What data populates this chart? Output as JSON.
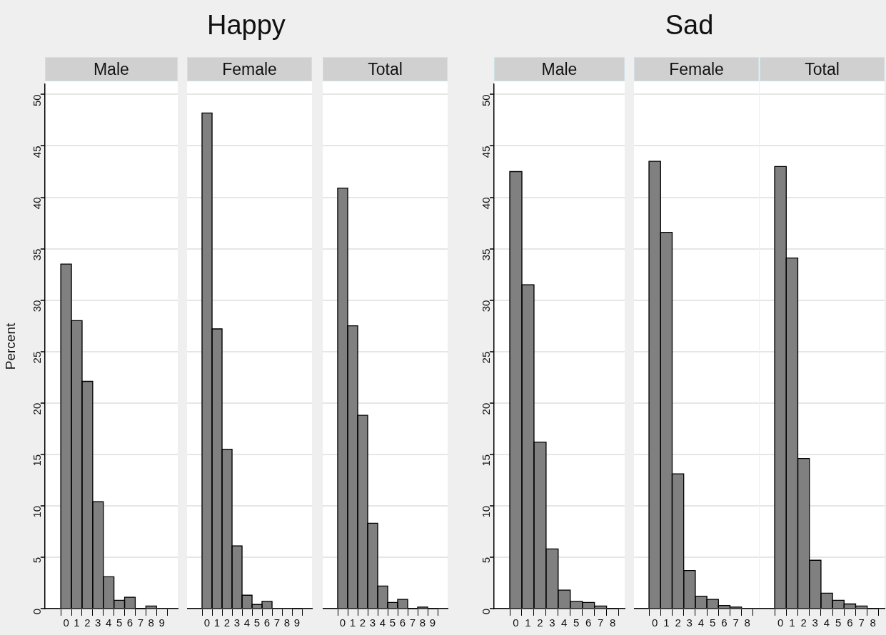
{
  "chart_data": [
    {
      "type": "other",
      "title": "Happy"
    },
    {
      "type": "histogram",
      "subtitle": "Male",
      "ylabel": "Percent",
      "bins": [
        -0.5,
        0.5,
        1.5,
        2.5,
        3.5,
        4.5,
        5.5,
        6.5,
        7.5,
        8.5,
        9.5
      ],
      "values": [
        33.5,
        28.0,
        22.1,
        10.4,
        3.1,
        0.8,
        1.1,
        0,
        0.25,
        null
      ],
      "color": "#808080",
      "xlim": [
        -2,
        10.5
      ],
      "xticks": [
        0,
        1,
        2,
        3,
        4,
        5,
        6,
        7,
        8,
        9
      ],
      "ylim": [
        0,
        51
      ],
      "yticks": [
        0,
        5,
        10,
        15,
        20,
        25,
        30,
        35,
        40,
        45,
        50
      ],
      "grid": "y"
    },
    {
      "type": "histogram",
      "subtitle": "Female",
      "bins": [
        -0.5,
        0.5,
        1.5,
        2.5,
        3.5,
        4.5,
        5.5,
        6.5,
        7.5,
        8.5,
        9.5
      ],
      "values": [
        48.2,
        27.2,
        15.5,
        6.1,
        1.3,
        0.4,
        0.7,
        null,
        null,
        0
      ],
      "color": "#808080",
      "xlim": [
        -2,
        10.5
      ],
      "xticks": [
        0,
        1,
        2,
        3,
        4,
        5,
        6,
        7,
        8,
        9
      ],
      "ylim": [
        0,
        51
      ],
      "yticks": [
        0,
        5,
        10,
        15,
        20,
        25,
        30,
        35,
        40,
        45,
        50
      ],
      "grid": "y",
      "tick_labels": "x"
    },
    {
      "type": "histogram",
      "subtitle": "Total",
      "bins": [
        -0.5,
        0.5,
        1.5,
        2.5,
        3.5,
        4.5,
        5.5,
        6.5,
        7.5,
        8.5,
        9.5
      ],
      "values": [
        40.9,
        27.5,
        18.8,
        8.3,
        2.2,
        0.6,
        0.9,
        0,
        0.15,
        0
      ],
      "color": "#808080",
      "xlim": [
        -2,
        10.5
      ],
      "xticks": [
        0,
        1,
        2,
        3,
        4,
        5,
        6,
        7,
        8,
        9
      ],
      "ylim": [
        0,
        51
      ],
      "yticks": [
        0,
        5,
        10,
        15,
        20,
        25,
        30,
        35,
        40,
        45,
        50
      ],
      "grid": "y",
      "tick_labels": "x"
    },
    {
      "type": "other",
      "title": "Sad"
    },
    {
      "type": "histogram",
      "subtitle": "Male",
      "bins": [
        -0.5,
        0.5,
        1.5,
        2.5,
        3.5,
        4.5,
        5.5,
        6.5,
        7.5,
        8.5
      ],
      "values": [
        42.5,
        31.5,
        16.2,
        5.8,
        1.8,
        0.7,
        0.6,
        0.25,
        0
      ],
      "color": "#808080",
      "xlim": [
        -1.8,
        9
      ],
      "xticks": [
        0,
        1,
        2,
        3,
        4,
        5,
        6,
        7,
        8
      ],
      "ylim": [
        0,
        51
      ],
      "yticks": [
        0,
        5,
        10,
        15,
        20,
        25,
        30,
        35,
        40,
        45,
        50
      ],
      "grid": "y"
    },
    {
      "type": "histogram",
      "subtitle": "Female",
      "bins": [
        -0.5,
        0.5,
        1.5,
        2.5,
        3.5,
        4.5,
        5.5,
        6.5,
        7.5,
        8.5
      ],
      "values": [
        43.5,
        36.6,
        13.1,
        3.7,
        1.2,
        0.9,
        0.3,
        0.15,
        null
      ],
      "color": "#808080",
      "xlim": [
        -1.8,
        9
      ],
      "xticks": [
        0,
        1,
        2,
        3,
        4,
        5,
        6,
        7,
        8
      ],
      "ylim": [
        0,
        51
      ],
      "yticks": [
        0,
        5,
        10,
        15,
        20,
        25,
        30,
        35,
        40,
        45,
        50
      ],
      "grid": "y",
      "tick_labels": "x"
    },
    {
      "type": "histogram",
      "subtitle": "Total",
      "bins": [
        -0.5,
        0.5,
        1.5,
        2.5,
        3.5,
        4.5,
        5.5,
        6.5,
        7.5,
        8.5
      ],
      "values": [
        43.0,
        34.1,
        14.6,
        4.7,
        1.5,
        0.8,
        0.45,
        0.25,
        0
      ],
      "color": "#808080",
      "xlim": [
        -1.8,
        9
      ],
      "xticks": [
        0,
        1,
        2,
        3,
        4,
        5,
        6,
        7,
        8
      ],
      "ylim": [
        0,
        51
      ],
      "yticks": [
        0,
        5,
        10,
        15,
        20,
        25,
        30,
        35,
        40,
        45,
        50
      ],
      "grid": "y",
      "tick_labels": "x"
    }
  ]
}
